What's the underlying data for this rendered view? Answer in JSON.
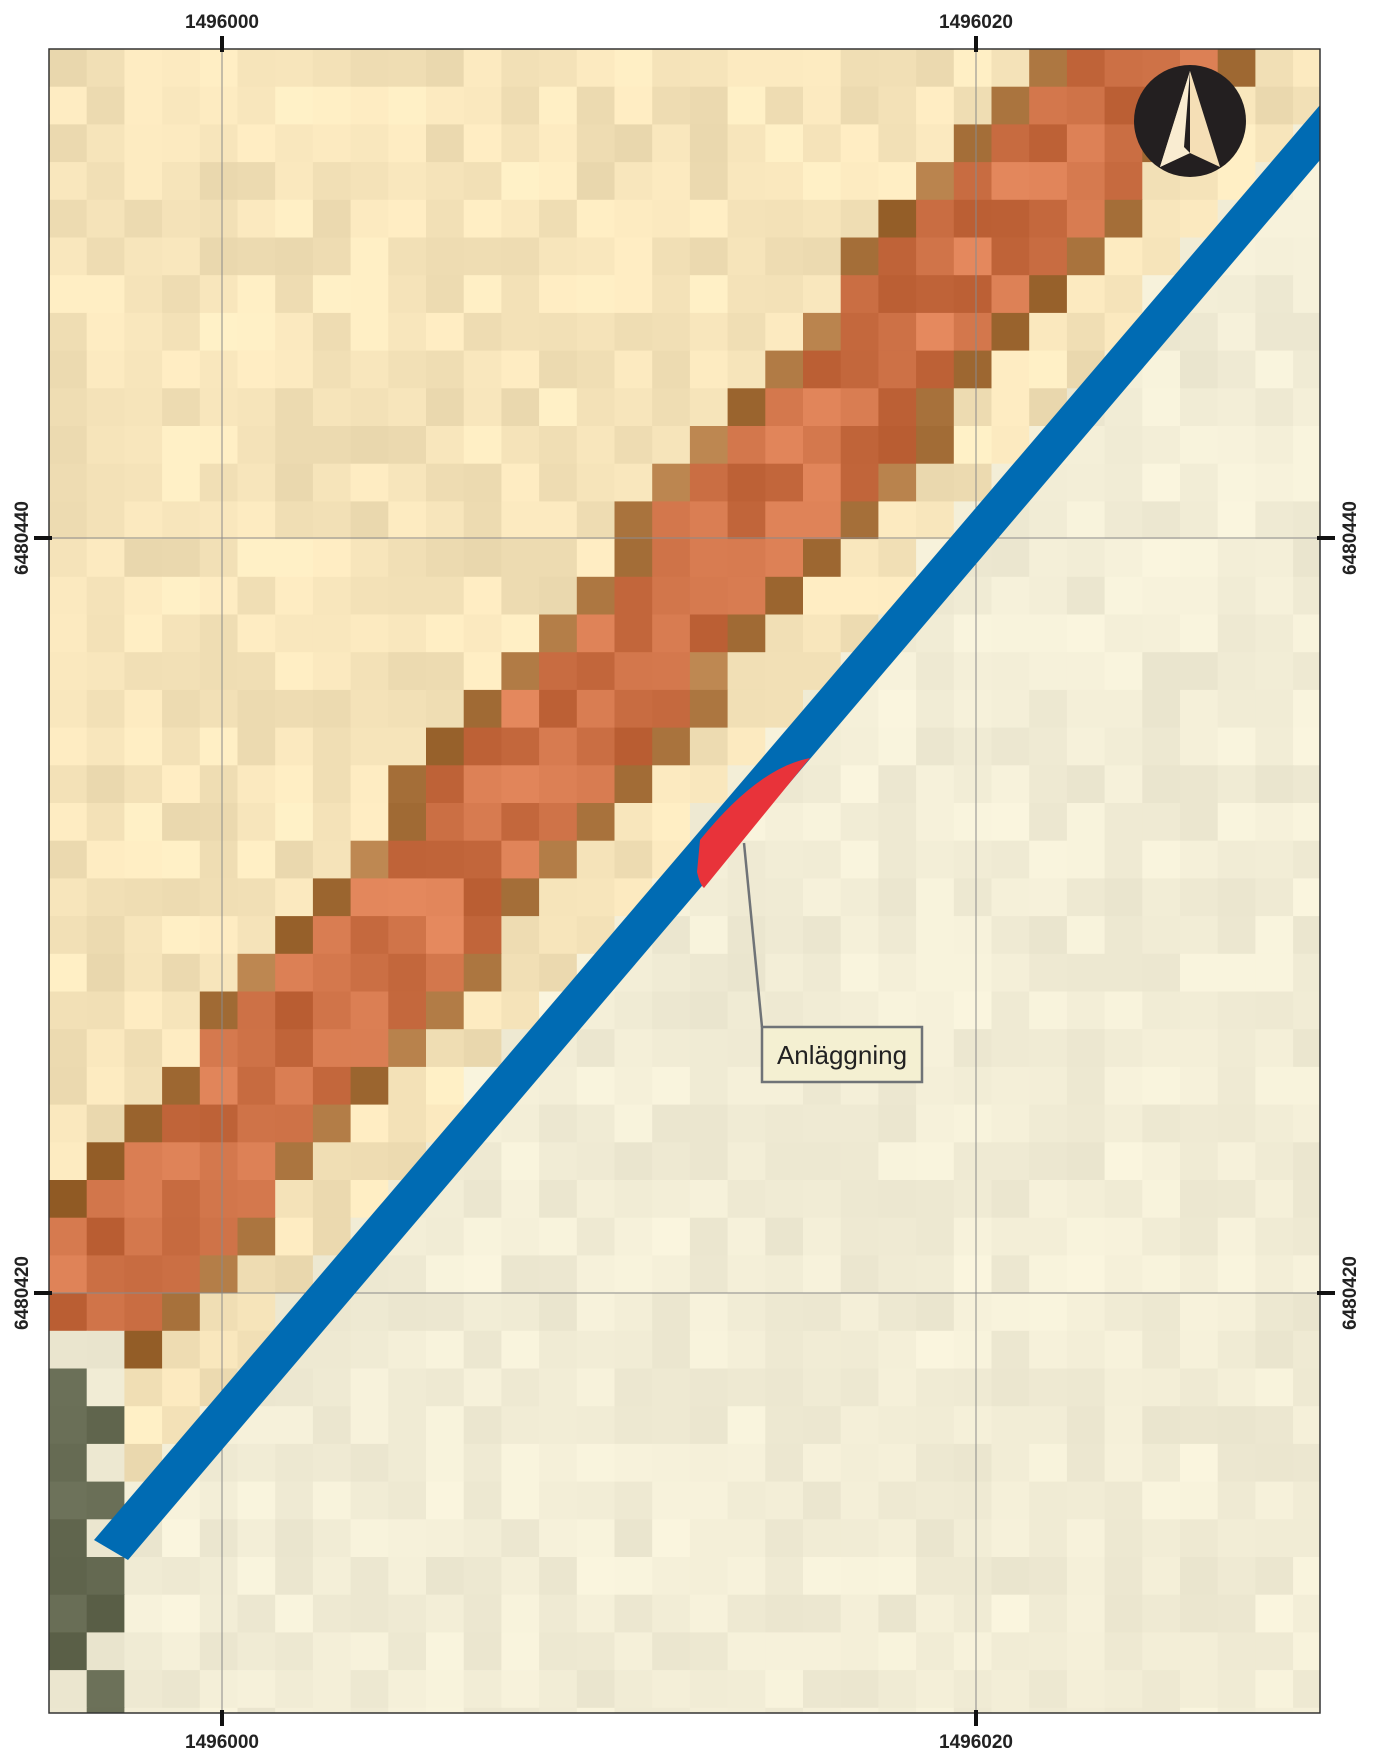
{
  "map": {
    "grid_labels": {
      "x_top": [
        "1496000",
        "1496020"
      ],
      "x_bottom": [
        "1496000",
        "1496020"
      ],
      "y_left": [
        "6480440",
        "6480420"
      ],
      "y_right": [
        "6480440",
        "6480420"
      ]
    },
    "callout": {
      "label": "Anläggning"
    },
    "north_arrow": {
      "icon": "north-arrow-icon"
    },
    "colors": {
      "road": "#006bb3",
      "facility": "#e8333a",
      "ridge": "#cf7348",
      "ridge_edge": "#a8723c",
      "background": "#f2edd6",
      "upper_left": "#f6e4ba",
      "vegetation": "#5b6048",
      "grid": "#8a8a8a",
      "callout_fill": "#f4f0d2",
      "callout_border": "#6f7377"
    }
  }
}
